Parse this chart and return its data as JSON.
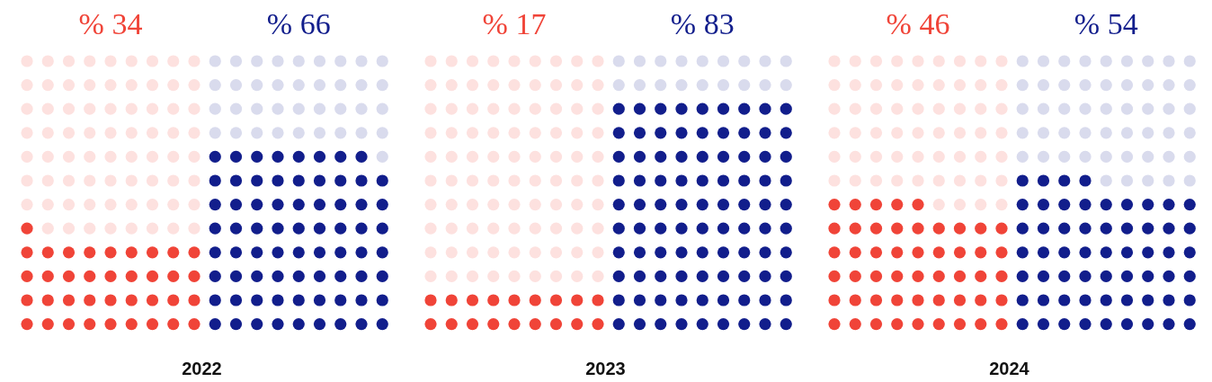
{
  "chart_data": [
    {
      "type": "other",
      "title": "2022",
      "values": [
        34,
        66
      ],
      "value_labels": [
        "% 34",
        "% 66"
      ],
      "colors": [
        "#f04438",
        "#121e8c"
      ]
    },
    {
      "type": "other",
      "title": "2023",
      "values": [
        17,
        83
      ],
      "value_labels": [
        "% 17",
        "% 83"
      ],
      "colors": [
        "#f04438",
        "#121e8c"
      ]
    },
    {
      "type": "other",
      "title": "2024",
      "values": [
        46,
        54
      ],
      "value_labels": [
        "% 46",
        "% 54"
      ],
      "colors": [
        "#f04438",
        "#121e8c"
      ]
    }
  ]
}
